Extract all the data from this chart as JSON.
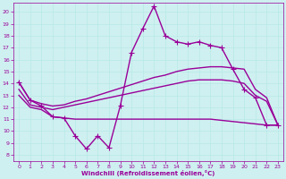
{
  "xlabel": "Windchill (Refroidissement éolien,°C)",
  "background_color": "#cff0f0",
  "line_color": "#990099",
  "grid_color": "#b8e8e8",
  "x_ticks": [
    0,
    1,
    2,
    3,
    4,
    5,
    6,
    7,
    8,
    9,
    10,
    11,
    12,
    13,
    14,
    15,
    16,
    17,
    18,
    19,
    20,
    21,
    22,
    23
  ],
  "y_ticks": [
    8,
    9,
    10,
    11,
    12,
    13,
    14,
    15,
    16,
    17,
    18,
    19,
    20
  ],
  "ylim": [
    7.5,
    20.8
  ],
  "xlim": [
    -0.5,
    23.5
  ],
  "series": {
    "main_upper": {
      "x": [
        0,
        1,
        2,
        3,
        4,
        5,
        6,
        7,
        8,
        9,
        10,
        11,
        12,
        13,
        14,
        15,
        16,
        17,
        18,
        19,
        20,
        21,
        22,
        23
      ],
      "y": [
        14.1,
        12.6,
        12.1,
        11.2,
        11.1,
        9.6,
        8.5,
        9.6,
        8.6,
        12.1,
        16.6,
        18.6,
        20.5,
        18.0,
        17.5,
        17.3,
        17.5,
        17.2,
        17.0,
        15.2,
        13.5,
        12.8,
        10.5,
        10.5
      ],
      "marker": "+",
      "lw": 1.0,
      "ms": 4
    },
    "upper_env": {
      "x": [
        0,
        1,
        2,
        3,
        4,
        5,
        6,
        7,
        8,
        9,
        10,
        11,
        12,
        13,
        14,
        15,
        16,
        17,
        18,
        19,
        20,
        21,
        22,
        23
      ],
      "y": [
        14.1,
        12.6,
        12.3,
        12.1,
        12.2,
        12.5,
        12.7,
        13.0,
        13.3,
        13.6,
        13.9,
        14.2,
        14.5,
        14.7,
        15.0,
        15.2,
        15.3,
        15.4,
        15.4,
        15.3,
        15.2,
        13.5,
        12.8,
        10.5
      ],
      "marker": null,
      "lw": 1.0
    },
    "mid_env": {
      "x": [
        0,
        1,
        2,
        3,
        4,
        5,
        6,
        7,
        8,
        9,
        10,
        11,
        12,
        13,
        14,
        15,
        16,
        17,
        18,
        19,
        20,
        21,
        22,
        23
      ],
      "y": [
        13.5,
        12.2,
        12.0,
        11.8,
        12.0,
        12.2,
        12.4,
        12.6,
        12.8,
        13.0,
        13.2,
        13.4,
        13.6,
        13.8,
        14.0,
        14.2,
        14.3,
        14.3,
        14.3,
        14.2,
        14.0,
        13.0,
        12.5,
        10.5
      ],
      "marker": null,
      "lw": 1.0
    },
    "lower_env": {
      "x": [
        0,
        1,
        2,
        3,
        4,
        5,
        6,
        7,
        8,
        9,
        10,
        11,
        12,
        13,
        14,
        15,
        16,
        17,
        18,
        19,
        20,
        21,
        22,
        23
      ],
      "y": [
        13.0,
        12.0,
        11.8,
        11.2,
        11.1,
        11.0,
        11.0,
        11.0,
        11.0,
        11.0,
        11.0,
        11.0,
        11.0,
        11.0,
        11.0,
        11.0,
        11.0,
        11.0,
        10.9,
        10.8,
        10.7,
        10.6,
        10.5,
        10.5
      ],
      "marker": null,
      "lw": 1.0
    }
  }
}
